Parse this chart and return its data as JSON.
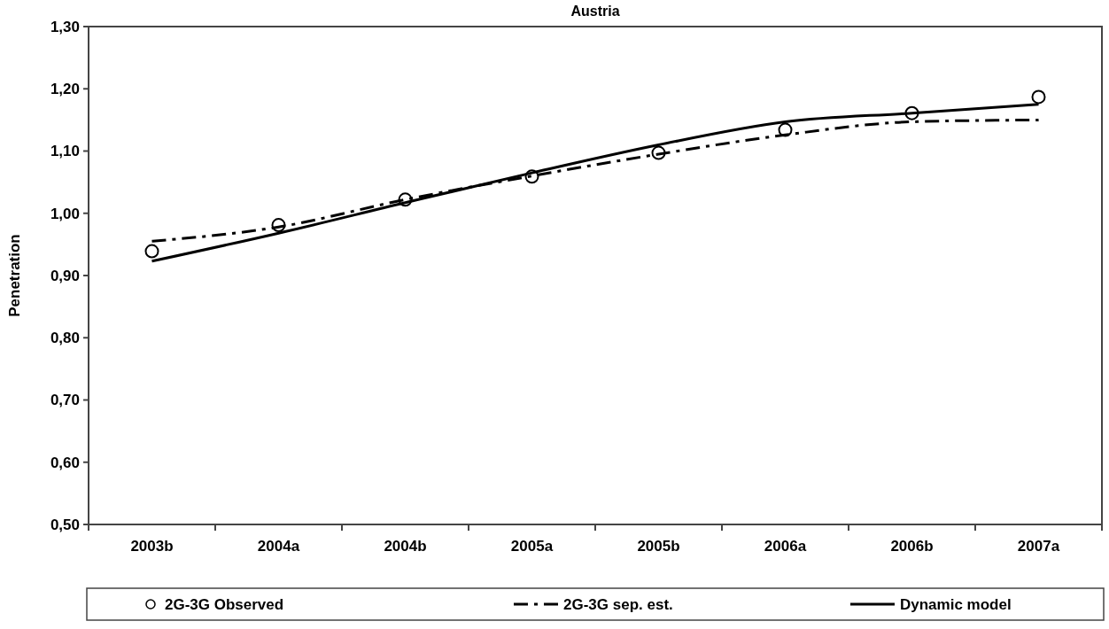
{
  "chart_data": {
    "type": "line",
    "title": "Austria",
    "ylabel": "Penetration",
    "categories": [
      "2003b",
      "2004a",
      "2004b",
      "2005a",
      "2005b",
      "2006a",
      "2006b",
      "2007a"
    ],
    "series": [
      {
        "name": "2G-3G Observed",
        "type": "scatter",
        "color": "#000000",
        "marker": "circle",
        "values": [
          0.939,
          0.981,
          1.022,
          1.059,
          1.097,
          1.134,
          1.161,
          1.187
        ]
      },
      {
        "name": "2G-3G sep. est.",
        "type": "line",
        "color": "#000000",
        "marker": "none",
        "line_style": "dashed",
        "values": [
          0.955,
          0.978,
          1.022,
          1.06,
          1.095,
          1.126,
          1.147,
          1.15
        ]
      },
      {
        "name": "Dynamic model",
        "type": "line",
        "color": "#000000",
        "marker": "none",
        "line_style": "solid",
        "values": [
          0.923,
          0.968,
          1.017,
          1.065,
          1.11,
          1.147,
          1.161,
          1.175
        ]
      }
    ],
    "ylim": [
      0.5,
      1.3
    ],
    "yticks": [
      {
        "value": 0.5,
        "label": "0,50"
      },
      {
        "value": 0.6,
        "label": "0,60"
      },
      {
        "value": 0.7,
        "label": "0,70"
      },
      {
        "value": 0.8,
        "label": "0,80"
      },
      {
        "value": 0.9,
        "label": "0,90"
      },
      {
        "value": 1.0,
        "label": "1,00"
      },
      {
        "value": 1.1,
        "label": "1,10"
      },
      {
        "value": 1.2,
        "label": "1,20"
      },
      {
        "value": 1.3,
        "label": "1,30"
      }
    ],
    "grid": false,
    "legend": "bottom"
  }
}
